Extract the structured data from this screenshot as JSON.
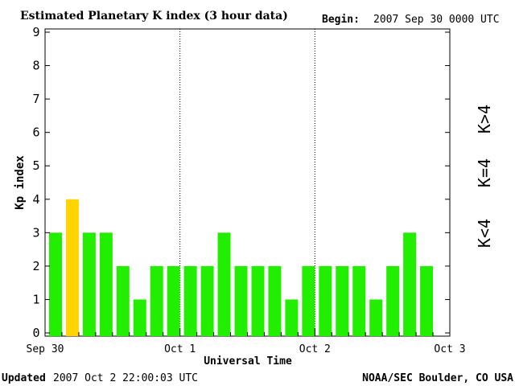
{
  "header": {
    "title": "Estimated Planetary K index (3 hour data)",
    "begin_label": "Begin:",
    "begin_value": "2007 Sep 30 0000 UTC"
  },
  "footer": {
    "updated_label": "Updated",
    "updated_value": "2007 Oct  2 22:00:03 UTC",
    "source": "NOAA/SEC Boulder, CO USA"
  },
  "legend": {
    "low": "K<4",
    "mid": "K=4",
    "high": "K>4"
  },
  "colors": {
    "low": "#22ee00",
    "mid": "#ffd400",
    "high": "#ee2200"
  },
  "chart_data": {
    "type": "bar",
    "title": "Estimated Planetary K index (3 hour data)",
    "xlabel": "Universal Time",
    "ylabel": "Kp index",
    "ylim": [
      0,
      9
    ],
    "yticks": [
      0,
      1,
      2,
      3,
      4,
      5,
      6,
      7,
      8,
      9
    ],
    "xticks": [
      "Sep 30",
      "Oct 1",
      "Oct 2",
      "Oct 3"
    ],
    "interval_hours": 3,
    "values": [
      3,
      4,
      3,
      3,
      2,
      1,
      2,
      2,
      2,
      2,
      3,
      2,
      2,
      2,
      1,
      2,
      2,
      2,
      2,
      1,
      2,
      3,
      2
    ],
    "grid": "dotted vertical lines at day boundaries"
  }
}
